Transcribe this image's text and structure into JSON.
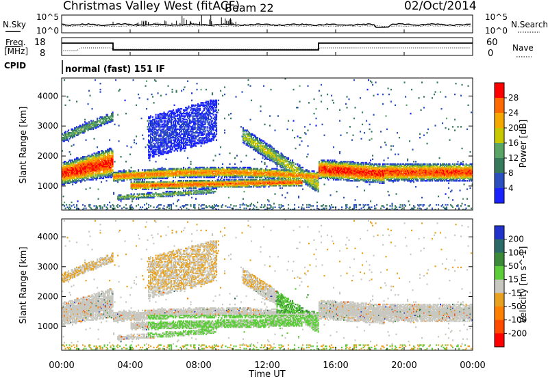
{
  "header": {
    "title": "Christmas Valley West (fitACF)",
    "beam": "Beam 22",
    "date": "02/Oct/2014"
  },
  "noise_panel": {
    "left_label": "N.Sky",
    "right_label": "N.Search",
    "left_ticks": [
      "10^5",
      "10^0"
    ],
    "right_ticks": [
      "10^5",
      "10^0"
    ]
  },
  "freq_panel": {
    "left_label_1": "Freq.",
    "left_label_2": "[MHz]",
    "right_label": "Nave",
    "left_ticks": [
      "18",
      "8"
    ],
    "right_ticks": [
      "60",
      "0"
    ]
  },
  "cpid": {
    "label": "CPID",
    "mode": "normal (fast) 151 IF"
  },
  "chart_data": [
    {
      "type": "heatmap",
      "name": "power",
      "ylabel": "Slant Range [km]",
      "y_ticks": [
        1000,
        2000,
        3000,
        4000
      ],
      "ylim": [
        200,
        4600
      ],
      "colorbar": {
        "label": "Power [dB]",
        "ticks": [
          4,
          8,
          12,
          16,
          20,
          24,
          28
        ],
        "colors": [
          "#1a22ff",
          "#2c4fbf",
          "#36795b",
          "#5aa565",
          "#c8c800",
          "#f5a800",
          "#ff6a00",
          "#ff0000"
        ]
      }
    },
    {
      "type": "heatmap",
      "name": "velocity",
      "ylabel": "Slant Range [km]",
      "y_ticks": [
        1000,
        2000,
        3000,
        4000
      ],
      "ylim": [
        200,
        4600
      ],
      "colorbar": {
        "label": "Velocity [m s^-1]",
        "ticks": [
          200,
          100,
          50,
          15,
          -15,
          -50,
          -100,
          -200
        ],
        "colors": [
          "#2233cc",
          "#2b6a66",
          "#3a8a3a",
          "#5ccc3a",
          "#c8c8c0",
          "#e8a21f",
          "#ff8000",
          "#ff4a00",
          "#ff0000"
        ]
      }
    }
  ],
  "x_axis": {
    "label": "Time UT",
    "ticks": [
      "00:00",
      "04:00",
      "08:00",
      "12:00",
      "16:00",
      "20:00",
      "00:00"
    ],
    "xlim_hours": [
      0,
      24
    ]
  }
}
